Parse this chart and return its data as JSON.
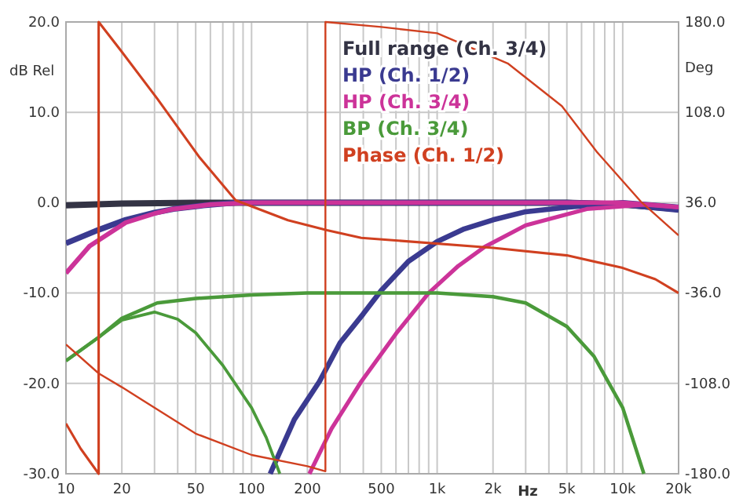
{
  "chart_data": {
    "type": "line",
    "xlabel": "Hz",
    "ylabel": "dB Rel",
    "y2label": "Deg",
    "log": "x",
    "grid": true,
    "legend": "top",
    "line_style": "solid",
    "marker": "none",
    "xlim": [
      10,
      20000
    ],
    "xticks": [
      10,
      20,
      {
        "value": 30,
        "label": null
      },
      {
        "value": 40,
        "label": null
      },
      50,
      {
        "value": 60,
        "label": null
      },
      {
        "value": 70,
        "label": null
      },
      {
        "value": 80,
        "label": null
      },
      {
        "value": 90,
        "label": null
      },
      100,
      200,
      {
        "value": 300,
        "label": null
      },
      {
        "value": 400,
        "label": null
      },
      500,
      {
        "value": 600,
        "label": null
      },
      {
        "value": 700,
        "label": null
      },
      {
        "value": 800,
        "label": null
      },
      {
        "value": 900,
        "label": null
      },
      {
        "value": 1000,
        "label": "1k"
      },
      {
        "value": 2000,
        "label": "2k"
      },
      {
        "value": 3000,
        "label": null
      },
      {
        "value": 4000,
        "label": null
      },
      {
        "value": 5000,
        "label": "5k"
      },
      {
        "value": 6000,
        "label": null
      },
      {
        "value": 7000,
        "label": null
      },
      {
        "value": 8000,
        "label": null
      },
      {
        "value": 9000,
        "label": null
      },
      {
        "value": 10000,
        "label": "10k"
      },
      {
        "value": 20000,
        "label": "20k"
      }
    ],
    "ylim": [
      -30,
      20
    ],
    "yticks": [
      {
        "value": -30,
        "label": "-30.0"
      },
      {
        "value": -20,
        "label": "-20.0"
      },
      {
        "value": -10,
        "label": "-10.0"
      },
      {
        "value": 0,
        "label": "0.0"
      },
      {
        "value": 10,
        "label": "10.0"
      },
      {
        "value": 20,
        "label": "20.0"
      }
    ],
    "y2lim": [
      -180,
      180
    ],
    "y2ticks": [
      {
        "value": -180,
        "label": "-180.0"
      },
      {
        "value": -108,
        "label": "-108.0"
      },
      {
        "value": -36,
        "label": "-36.0"
      },
      {
        "value": 36,
        "label": "36.0"
      },
      {
        "value": 108,
        "label": "108.0"
      },
      {
        "value": 180,
        "label": "180.0"
      }
    ],
    "series": [
      {
        "name": "Full range (Ch. 3/4)",
        "color": "#333344",
        "x": [
          10,
          20,
          50,
          100,
          1000,
          5000,
          10000,
          20000
        ],
        "values": [
          -0.3,
          -0.1,
          0,
          0,
          0,
          0,
          -0.2,
          -0.7
        ]
      },
      {
        "name": "HP (Ch. 1/2)",
        "color": "#3a3a90",
        "x": [
          10,
          15,
          21,
          30,
          38,
          55,
          82,
          200,
          1000,
          5000,
          10000,
          20000
        ],
        "values": [
          -4.5,
          -3,
          -1.9,
          -1.1,
          -0.7,
          -0.3,
          0,
          0,
          0,
          0,
          -0.2,
          -0.8
        ]
      },
      {
        "color": "#3a3a90",
        "x": [
          126,
          170,
          232,
          300,
          400,
          500,
          700,
          1000,
          1400,
          2000,
          3000,
          5000,
          10000,
          20000
        ],
        "values": [
          -30,
          -24,
          -19.8,
          -15.5,
          -12.3,
          -9.7,
          -6.5,
          -4.3,
          -2.9,
          -1.9,
          -1,
          -0.5,
          0,
          -0.5
        ]
      },
      {
        "name": "HP (Ch. 3/4)",
        "color": "#cc3399",
        "x": [
          10,
          13.4,
          21,
          30,
          38,
          60,
          100,
          1000,
          10000,
          20000
        ],
        "values": [
          -7.8,
          -4.8,
          -2.2,
          -1.2,
          -0.7,
          -0.2,
          0,
          0,
          0,
          -0.5
        ]
      },
      {
        "color": "#cc3399",
        "x": [
          205,
          270,
          390,
          600,
          900,
          1300,
          1800,
          3000,
          6400,
          13600,
          20000
        ],
        "values": [
          -30,
          -25,
          -19.8,
          -14.5,
          -10,
          -7,
          -4.9,
          -2.5,
          -0.7,
          -0.2,
          -0.5
        ]
      },
      {
        "name": "BP (Ch. 3/4)",
        "color": "#4a9a3a",
        "x": [
          10,
          15,
          20,
          31,
          50,
          100,
          200,
          1000,
          2000,
          3000,
          5000,
          7000,
          10000,
          13000
        ],
        "values": [
          -17.5,
          -14.9,
          -12.8,
          -11.1,
          -10.6,
          -10.2,
          -10,
          -10,
          -10.4,
          -11.1,
          -13.7,
          -17,
          -22.7,
          -30
        ]
      },
      {
        "color": "#4a9a3a",
        "x": [
          10,
          15,
          20,
          30,
          40,
          50,
          70,
          100,
          120,
          142
        ],
        "values": [
          -17.5,
          -14.9,
          -13,
          -12.1,
          -12.9,
          -14.4,
          -18,
          -22.7,
          -26,
          -30
        ]
      },
      {
        "name": "Phase (Ch. 1/2)",
        "color": "#d04020",
        "axis": "y2",
        "x": [
          10,
          12,
          15,
          15,
          19.8,
          31,
          52.5,
          82,
          157,
          255,
          390,
          2000,
          5000,
          10000,
          15000,
          20000
        ],
        "values": [
          -140,
          -160,
          -180,
          180,
          157,
          119,
          72,
          38,
          22,
          14,
          8,
          0,
          -6,
          -16,
          -25,
          -36
        ]
      },
      {
        "color": "#d04020",
        "axis": "y2",
        "x": [
          10,
          15,
          20,
          50,
          100,
          200,
          250,
          250,
          500,
          1000,
          2400,
          4700,
          7300,
          12500,
          20000
        ],
        "values": [
          -77,
          -100,
          -111,
          -148,
          -165,
          -174,
          -178,
          180,
          176,
          171,
          147,
          113,
          76,
          37,
          10
        ]
      }
    ]
  }
}
